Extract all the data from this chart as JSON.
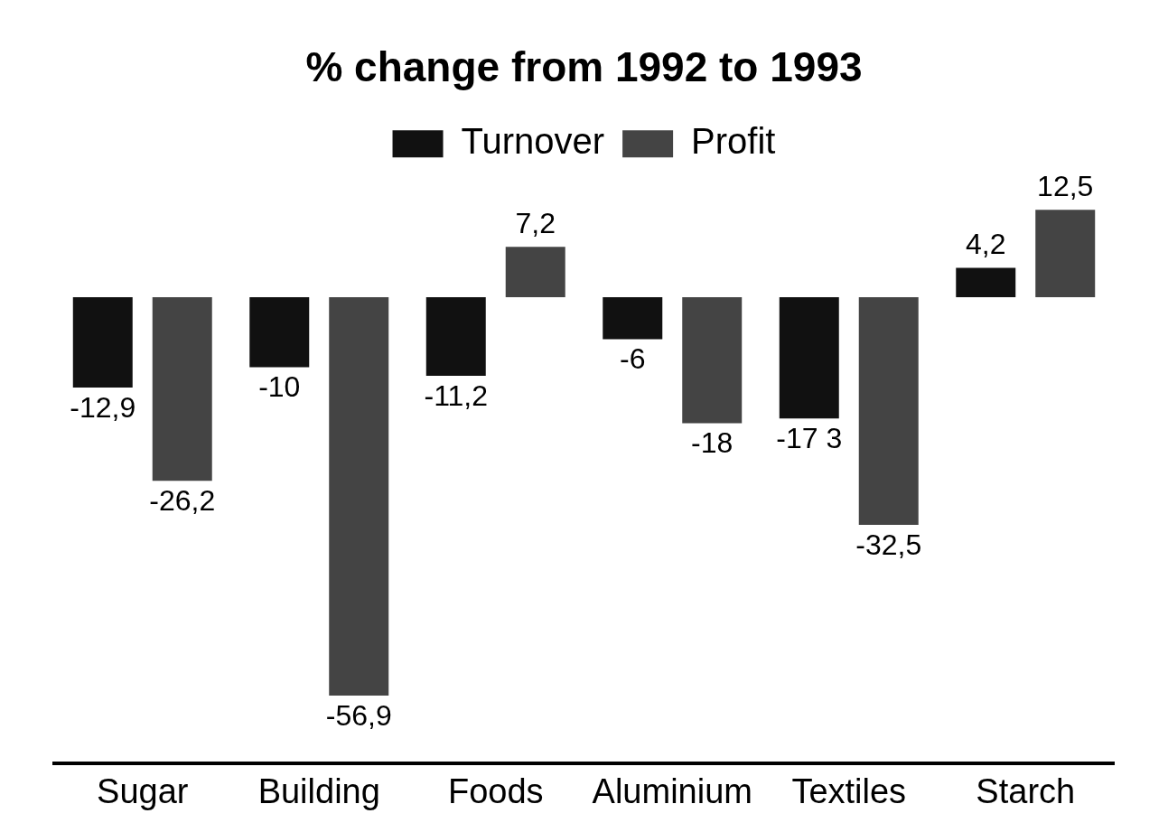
{
  "chart_data": {
    "type": "bar",
    "title": "% change from 1992 to 1993",
    "categories": [
      "Sugar",
      "Building",
      "Foods",
      "Aluminium",
      "Textiles",
      "Starch"
    ],
    "series": [
      {
        "name": "Turnover",
        "color": "#111111",
        "values": [
          -12.9,
          -10,
          -11.2,
          -6,
          -17.3,
          4.2
        ],
        "value_labels": [
          "-12,9",
          "-10",
          "-11,2",
          "-6",
          "-17 3",
          "4,2"
        ]
      },
      {
        "name": "Profit",
        "color": "#444444",
        "values": [
          -26.2,
          -56.9,
          7.2,
          -18,
          -32.5,
          12.5
        ],
        "value_labels": [
          "-26,2",
          "-56,9",
          "7,2",
          "-18",
          "-32,5",
          "12,5"
        ]
      }
    ],
    "legend": "top",
    "grid": false
  }
}
